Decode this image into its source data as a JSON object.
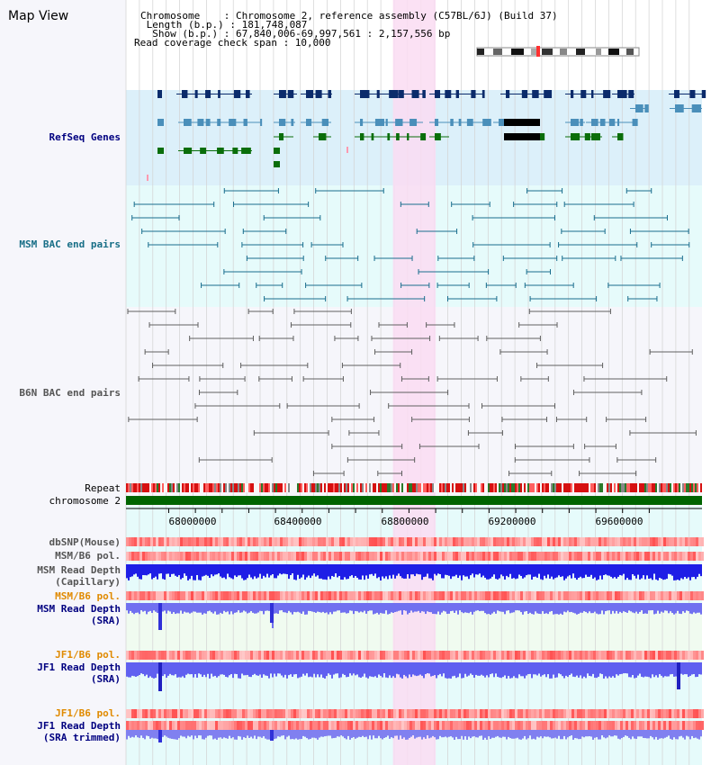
{
  "header": {
    "title": "Map View",
    "info_lines": [
      "Chromosome    : Chromosome 2, reference assembly (C57BL/6J) (Build 37)",
      " Length (b.p.) : 181,748,087",
      "  Show (b.p.) : 67,840,006-69,997,561 : 2,157,556 bp",
      "Read coverage check span : 10,000"
    ]
  },
  "view": {
    "start": 67840006,
    "end": 69997561,
    "highlight_start": 68840000,
    "highlight_end": 69000000
  },
  "tracks": {
    "refseq": "RefSeq Genes",
    "msm_bac": "MSM BAC end pairs",
    "b6n_bac": "B6N BAC end pairs",
    "repeat": "Repeat",
    "chromosome": "chromosome 2",
    "dbsnp": "dbSNP(Mouse)",
    "msm_pol_1": "MSM/B6 pol.",
    "msm_depth_cap_1": "MSM Read Depth",
    "msm_depth_cap_2": "(Capillary)",
    "msm_pol_2": "MSM/B6 pol.",
    "msm_depth_sra_1": "MSM Read Depth",
    "msm_depth_sra_2": "(SRA)",
    "jf1_pol_1": "JF1/B6 pol.",
    "jf1_depth_1": "JF1 Read Depth",
    "jf1_depth_2": "(SRA)",
    "jf1_pol_2": "JF1/B6 pol.",
    "jf1_trim_1": "JF1 Read Depth",
    "jf1_trim_2": "(SRA trimmed)"
  },
  "axis": {
    "ticks": [
      "68000000",
      "68400000",
      "68800000",
      "69200000",
      "69600000"
    ]
  },
  "colors": {
    "refseq_dark": "#0b2b6b",
    "refseq_light": "#4a8fba",
    "refseq_green": "#0a6e0a",
    "bac_teal": "#1a6e8e",
    "bac_gray": "#606060",
    "highlight": "#fadcf2",
    "depth_blue": "#1e1ee6",
    "chromosome": "#006400"
  }
}
